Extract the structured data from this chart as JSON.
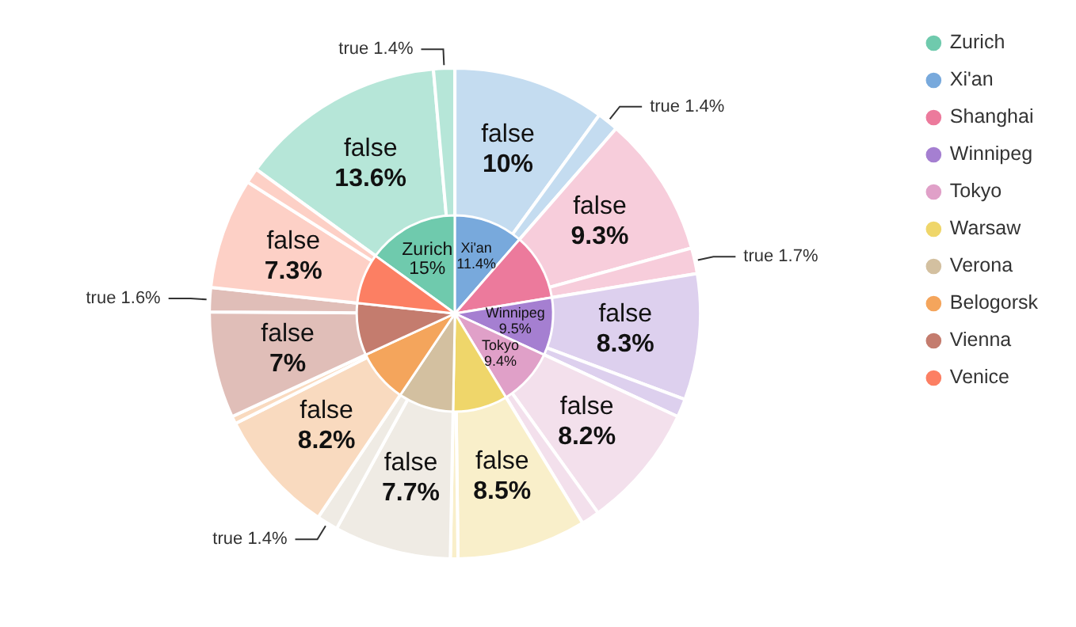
{
  "chart_data": [
    {
      "type": "pie",
      "legend": "top right",
      "categories": [
        "Zurich",
        "Xi'an",
        "Shanghai",
        "Winnipeg",
        "Tokyo",
        "Warsaw",
        "Verona",
        "Belogorsk",
        "Vienna",
        "Venice"
      ],
      "values": [
        15,
        11.4,
        11.0,
        9.5,
        9.4,
        9.0,
        9.1,
        8.7,
        8.6,
        8.3
      ],
      "colors": [
        "#6fcaad",
        "#78a9dc",
        "#ec7a9c",
        "#a57fd1",
        "#e0a0c8",
        "#efd66a",
        "#d3c0a0",
        "#f4a55c",
        "#c47c6e",
        "#fc7f63"
      ],
      "value_labels": [
        "15%",
        "11.4%",
        null,
        "9.5%",
        "9.4%",
        null,
        null,
        null,
        null,
        null
      ]
    },
    {
      "type": "donut",
      "categories": [
        "false",
        "true",
        "false",
        "true",
        "false",
        "true",
        "false",
        null,
        "false",
        null,
        "false",
        null,
        "false",
        "true",
        "false",
        null,
        "false",
        "true",
        "false",
        null
      ],
      "values": [
        13.6,
        1.4,
        10,
        1.4,
        9.3,
        1.7,
        8.3,
        1.2,
        8.2,
        1.2,
        8.5,
        0.5,
        7.7,
        1.4,
        8.2,
        0.5,
        7,
        1.6,
        7.3,
        1.0
      ],
      "colors": [
        "#b6e6d8",
        "#b6e6d8",
        "#c4dcf0",
        "#c4dcf0",
        "#f7cddb",
        "#f7cddb",
        "#ddd0ee",
        "#ddd0ee",
        "#f3e0ec",
        "#f3e0ec",
        "#f9efca",
        "#f9efca",
        "#efebe4",
        "#efebe4",
        "#f9dabf",
        "#f9dabf",
        "#e0beb8",
        "#e0beb8",
        "#fdd0c6",
        "#fdd0c6"
      ],
      "value_labels": [
        "13.6%",
        "1.4%",
        "10%",
        "1.4%",
        "9.3%",
        "1.7%",
        "8.3%",
        null,
        "8.2%",
        null,
        "8.5%",
        null,
        "7.7%",
        "1.4%",
        "8.2%",
        null,
        "7%",
        "1.6%",
        "7.3%",
        null
      ]
    }
  ]
}
